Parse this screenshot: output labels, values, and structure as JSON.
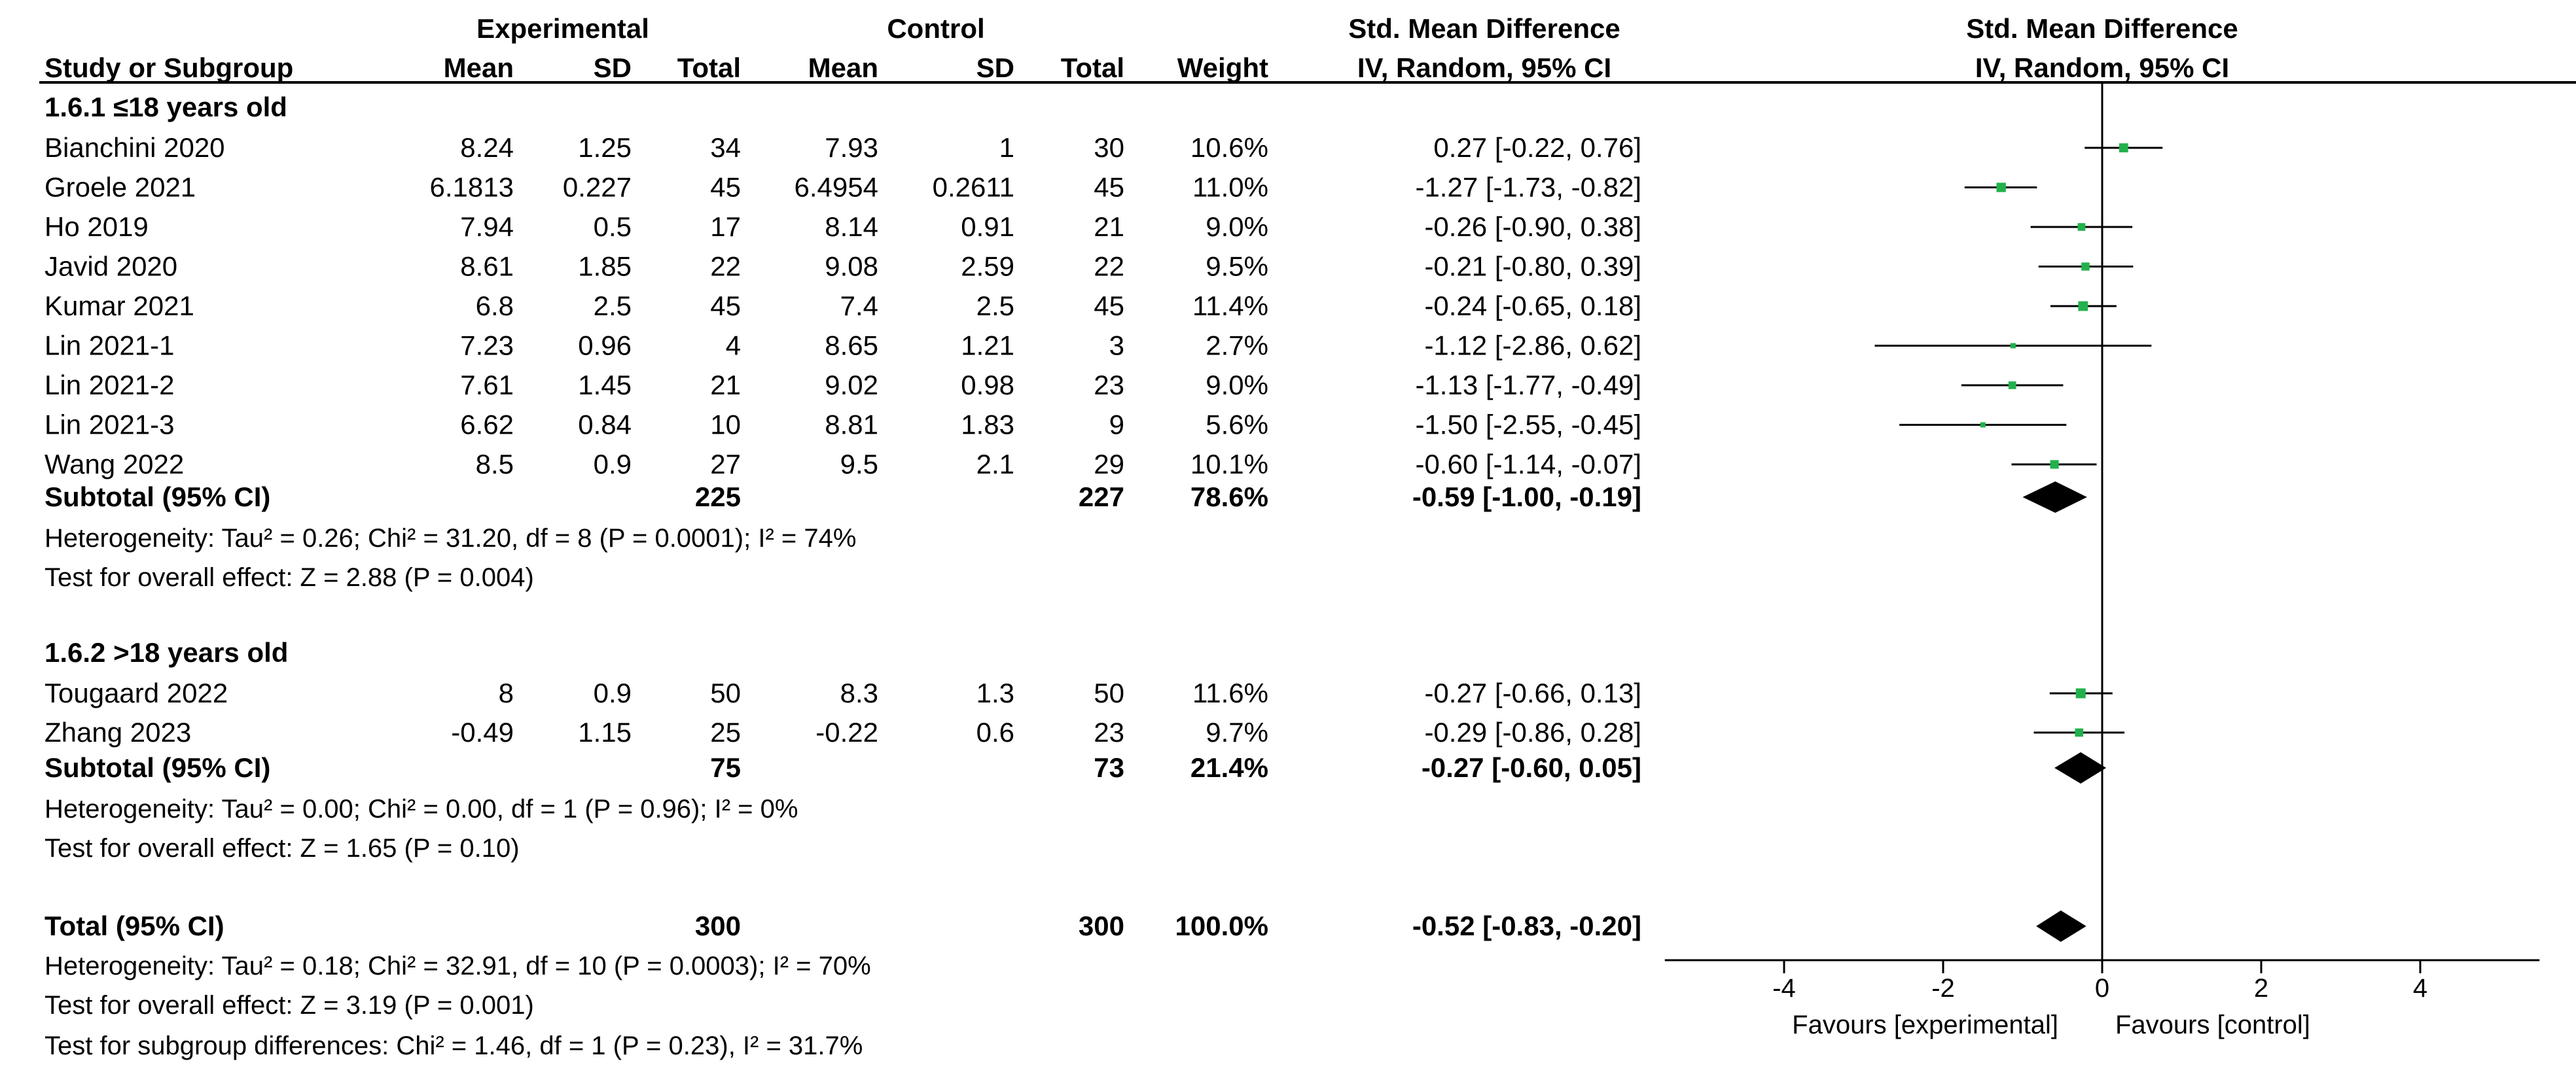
{
  "chart_data": {
    "type": "forest",
    "headers": {
      "experimental": "Experimental",
      "control": "Control",
      "smd_table": "Std. Mean Difference",
      "smd_plot": "Std. Mean Difference",
      "study": "Study or Subgroup",
      "mean": "Mean",
      "sd": "SD",
      "total": "Total",
      "weight": "Weight",
      "method_table": "IV, Random, 95% CI",
      "method_plot": "IV, Random, 95% CI"
    },
    "subgroups": [
      {
        "label": "1.6.1 ≤18 years old",
        "studies": [
          {
            "name": "Bianchini 2020",
            "e_mean": "8.24",
            "e_sd": "1.25",
            "e_total": "34",
            "c_mean": "7.93",
            "c_sd": "1",
            "c_total": "30",
            "weight": "10.6%",
            "ci_text": "0.27 [-0.22, 0.76]",
            "est": 0.27,
            "lo": -0.22,
            "hi": 0.76
          },
          {
            "name": "Groele 2021",
            "e_mean": "6.1813",
            "e_sd": "0.227",
            "e_total": "45",
            "c_mean": "6.4954",
            "c_sd": "0.2611",
            "c_total": "45",
            "weight": "11.0%",
            "ci_text": "-1.27 [-1.73, -0.82]",
            "est": -1.27,
            "lo": -1.73,
            "hi": -0.82
          },
          {
            "name": "Ho 2019",
            "e_mean": "7.94",
            "e_sd": "0.5",
            "e_total": "17",
            "c_mean": "8.14",
            "c_sd": "0.91",
            "c_total": "21",
            "weight": "9.0%",
            "ci_text": "-0.26 [-0.90, 0.38]",
            "est": -0.26,
            "lo": -0.9,
            "hi": 0.38
          },
          {
            "name": "Javid 2020",
            "e_mean": "8.61",
            "e_sd": "1.85",
            "e_total": "22",
            "c_mean": "9.08",
            "c_sd": "2.59",
            "c_total": "22",
            "weight": "9.5%",
            "ci_text": "-0.21 [-0.80, 0.39]",
            "est": -0.21,
            "lo": -0.8,
            "hi": 0.39
          },
          {
            "name": "Kumar 2021",
            "e_mean": "6.8",
            "e_sd": "2.5",
            "e_total": "45",
            "c_mean": "7.4",
            "c_sd": "2.5",
            "c_total": "45",
            "weight": "11.4%",
            "ci_text": "-0.24 [-0.65, 0.18]",
            "est": -0.24,
            "lo": -0.65,
            "hi": 0.18
          },
          {
            "name": "Lin 2021-1",
            "e_mean": "7.23",
            "e_sd": "0.96",
            "e_total": "4",
            "c_mean": "8.65",
            "c_sd": "1.21",
            "c_total": "3",
            "weight": "2.7%",
            "ci_text": "-1.12 [-2.86, 0.62]",
            "est": -1.12,
            "lo": -2.86,
            "hi": 0.62
          },
          {
            "name": "Lin 2021-2",
            "e_mean": "7.61",
            "e_sd": "1.45",
            "e_total": "21",
            "c_mean": "9.02",
            "c_sd": "0.98",
            "c_total": "23",
            "weight": "9.0%",
            "ci_text": "-1.13 [-1.77, -0.49]",
            "est": -1.13,
            "lo": -1.77,
            "hi": -0.49
          },
          {
            "name": "Lin 2021-3",
            "e_mean": "6.62",
            "e_sd": "0.84",
            "e_total": "10",
            "c_mean": "8.81",
            "c_sd": "1.83",
            "c_total": "9",
            "weight": "5.6%",
            "ci_text": "-1.50 [-2.55, -0.45]",
            "est": -1.5,
            "lo": -2.55,
            "hi": -0.45
          },
          {
            "name": "Wang 2022",
            "e_mean": "8.5",
            "e_sd": "0.9",
            "e_total": "27",
            "c_mean": "9.5",
            "c_sd": "2.1",
            "c_total": "29",
            "weight": "10.1%",
            "ci_text": "-0.60 [-1.14, -0.07]",
            "est": -0.6,
            "lo": -1.14,
            "hi": -0.07
          }
        ],
        "subtotal": {
          "label": "Subtotal (95% CI)",
          "e_total": "225",
          "c_total": "227",
          "weight": "78.6%",
          "ci_text": "-0.59 [-1.00, -0.19]",
          "est": -0.59,
          "lo": -1.0,
          "hi": -0.19
        },
        "heterogeneity": "Heterogeneity: Tau² = 0.26; Chi² = 31.20, df = 8 (P = 0.0001); I² = 74%",
        "overall_effect": "Test for overall effect: Z = 2.88 (P = 0.004)"
      },
      {
        "label": "1.6.2 >18 years old",
        "studies": [
          {
            "name": "Tougaard 2022",
            "e_mean": "8",
            "e_sd": "0.9",
            "e_total": "50",
            "c_mean": "8.3",
            "c_sd": "1.3",
            "c_total": "50",
            "weight": "11.6%",
            "ci_text": "-0.27 [-0.66, 0.13]",
            "est": -0.27,
            "lo": -0.66,
            "hi": 0.13
          },
          {
            "name": "Zhang 2023",
            "e_mean": "-0.49",
            "e_sd": "1.15",
            "e_total": "25",
            "c_mean": "-0.22",
            "c_sd": "0.6",
            "c_total": "23",
            "weight": "9.7%",
            "ci_text": "-0.29 [-0.86, 0.28]",
            "est": -0.29,
            "lo": -0.86,
            "hi": 0.28
          }
        ],
        "subtotal": {
          "label": "Subtotal (95% CI)",
          "e_total": "75",
          "c_total": "73",
          "weight": "21.4%",
          "ci_text": "-0.27 [-0.60, 0.05]",
          "est": -0.27,
          "lo": -0.6,
          "hi": 0.05
        },
        "heterogeneity": "Heterogeneity: Tau² = 0.00; Chi² = 0.00, df = 1 (P = 0.96); I² = 0%",
        "overall_effect": "Test for overall effect: Z = 1.65 (P = 0.10)"
      }
    ],
    "total": {
      "label": "Total (95% CI)",
      "e_total": "300",
      "c_total": "300",
      "weight": "100.0%",
      "ci_text": "-0.52 [-0.83, -0.20]",
      "est": -0.52,
      "lo": -0.83,
      "hi": -0.2
    },
    "total_heterogeneity": "Heterogeneity: Tau² = 0.18; Chi² = 32.91, df = 10 (P = 0.0003); I² = 70%",
    "total_overall_effect": "Test for overall effect: Z = 3.19 (P = 0.001)",
    "subgroup_differences": "Test for subgroup differences: Chi² = 1.46, df = 1 (P = 0.23), I² = 31.7%",
    "x_axis": {
      "ticks": [
        -4,
        -2,
        0,
        2,
        4
      ],
      "tick_labels": [
        "-4",
        "-2",
        "0",
        "2",
        "4"
      ],
      "xlim": [
        -5.5,
        5.5
      ]
    },
    "favours_left": "Favours [experimental]",
    "favours_right": "Favours [control]",
    "colors": {
      "study_marker": "#22b14c",
      "diamond": "#000000",
      "lines": "#000000"
    }
  }
}
